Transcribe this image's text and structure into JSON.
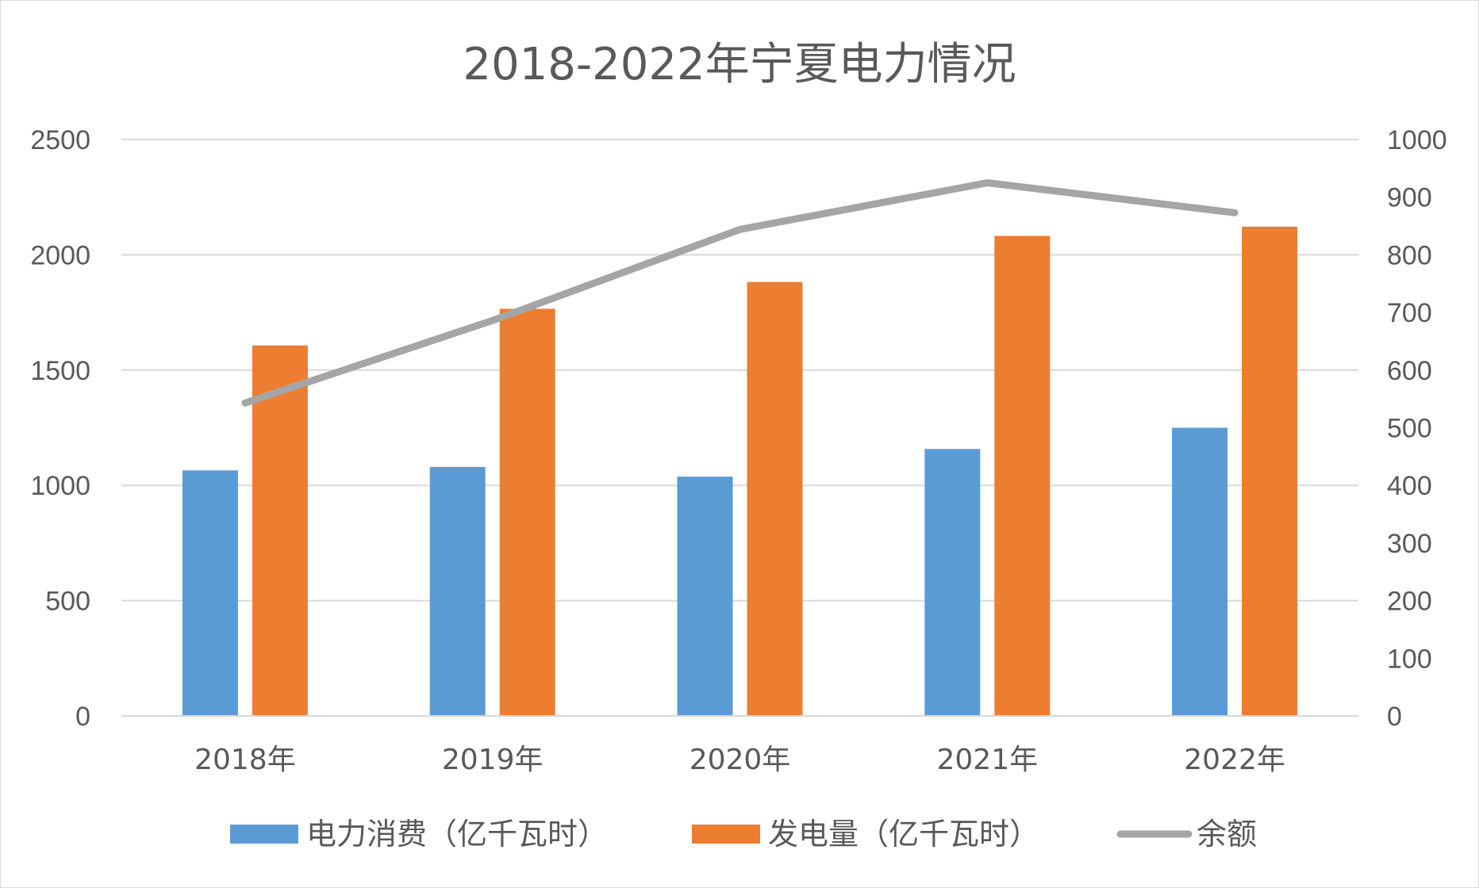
{
  "chart_data": {
    "type": "bar",
    "title": "2018-2022年宁夏电力情况",
    "categories": [
      "2018年",
      "2019年",
      "2020年",
      "2021年",
      "2022年"
    ],
    "series": [
      {
        "name": "电力消费（亿千瓦时）",
        "type": "bar",
        "axis": "left",
        "color": "#5B9BD5",
        "values": [
          1065,
          1080,
          1038,
          1158,
          1250
        ]
      },
      {
        "name": "发电量（亿千瓦时）",
        "type": "bar",
        "axis": "left",
        "color": "#ED7D31",
        "values": [
          1607,
          1766,
          1882,
          2082,
          2122
        ]
      },
      {
        "name": "余额",
        "type": "line",
        "axis": "right",
        "color": "#A5A5A5",
        "values": [
          543,
          686,
          844,
          925,
          873
        ]
      }
    ],
    "y_left": {
      "min": 0,
      "max": 2500,
      "ticks": [
        "0",
        "500",
        "1000",
        "1500",
        "2000",
        "2500"
      ]
    },
    "y_right": {
      "min": 0,
      "max": 1000,
      "ticks": [
        "0",
        "100",
        "200",
        "300",
        "400",
        "500",
        "600",
        "700",
        "800",
        "900",
        "1000"
      ]
    },
    "grid": true,
    "legend_position": "bottom"
  }
}
